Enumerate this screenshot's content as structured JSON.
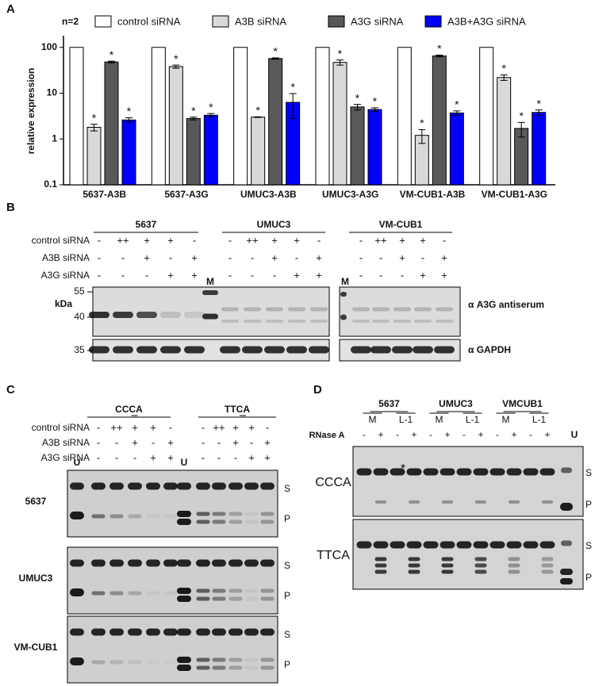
{
  "chart_data": {
    "type": "bar",
    "panel_label": "A",
    "annotation": "n=2",
    "y_label": "relative expression",
    "log_scale": true,
    "ylim": [
      0.1,
      180
    ],
    "yticks": [
      0.1,
      1,
      10,
      100
    ],
    "categories": [
      "5637-A3B",
      "5637-A3G",
      "UMUC3-A3B",
      "UMUC3-A3G",
      "VM-CUB1-A3B",
      "VM-CUB1-A3G"
    ],
    "series": [
      {
        "name": "control siRNA",
        "color": "#ffffff",
        "values": [
          100,
          100,
          100,
          100,
          100,
          100
        ]
      },
      {
        "name": "A3B siRNA",
        "color": "#d9d9d9",
        "values": [
          1.8,
          38,
          3.0,
          47,
          1.2,
          22
        ],
        "errors": [
          0.3,
          3,
          0.05,
          6,
          0.4,
          3
        ],
        "significance": [
          "*",
          "*",
          "*",
          "*",
          "*",
          "*"
        ]
      },
      {
        "name": "A3G siRNA",
        "color": "#595959",
        "values": [
          48,
          2.8,
          57,
          5.0,
          65,
          1.7
        ],
        "errors": [
          2,
          0.2,
          2,
          0.7,
          3,
          0.6
        ],
        "significance": [
          "*",
          "*",
          "*",
          "*",
          "*",
          "*"
        ]
      },
      {
        "name": "A3B+A3G siRNA",
        "color": "#0000ff",
        "values": [
          2.6,
          3.3,
          6.3,
          4.4,
          3.7,
          3.8
        ],
        "errors": [
          0.3,
          0.3,
          3.5,
          0.4,
          0.4,
          0.5
        ],
        "significance": [
          "*",
          "*",
          "*",
          "*",
          "*",
          "*"
        ]
      }
    ]
  },
  "panel_b": {
    "label": "B",
    "groups": [
      "5637",
      "UMUC3",
      "VM-CUB1"
    ],
    "treatments": [
      {
        "label": "control siRNA",
        "signs": [
          "-",
          "++",
          "+",
          "+",
          "-"
        ]
      },
      {
        "label": "A3B siRNA",
        "signs": [
          "-",
          "-",
          "+",
          "-",
          "+"
        ]
      },
      {
        "label": "A3G siRNA",
        "signs": [
          "-",
          "-",
          "-",
          "+",
          "+"
        ]
      }
    ],
    "marker_lane": "M",
    "size_unit": "kDa",
    "sizes": [
      "55",
      "40",
      "35"
    ],
    "antibodies": [
      "α A3G antiserum",
      "α GAPDH"
    ]
  },
  "panel_c": {
    "label": "C",
    "substrates": [
      "CCCA",
      "TTCA"
    ],
    "treatments": [
      {
        "label": "control siRNA",
        "signs": [
          "-",
          "++",
          "+",
          "+",
          "-"
        ]
      },
      {
        "label": "A3B siRNA",
        "signs": [
          "-",
          "-",
          "+",
          "-",
          "+"
        ]
      },
      {
        "label": "A3G siRNA",
        "signs": [
          "-",
          "-",
          "-",
          "+",
          "+"
        ]
      }
    ],
    "untreated": "U",
    "cell_lines": [
      "5637",
      "UMUC3",
      "VM-CUB1"
    ],
    "bands": [
      "S",
      "P"
    ]
  },
  "panel_d": {
    "label": "D",
    "cell_lines": [
      "5637",
      "UMUC3",
      "VMCUB1"
    ],
    "fractions": [
      "M",
      "L-1"
    ],
    "enzyme": "RNase A",
    "enzyme_signs": [
      "-",
      "+"
    ],
    "untreated": "U",
    "substrates": [
      "CCCA",
      "TTCA"
    ],
    "bands": [
      "S",
      "P"
    ],
    "note": "*"
  }
}
